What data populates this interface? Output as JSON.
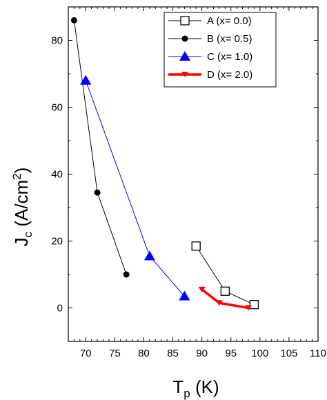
{
  "chart_data": {
    "type": "line",
    "xlabel": {
      "main": "T",
      "sub": "p",
      "unit": " (K)"
    },
    "ylabel": {
      "main": "J",
      "sub": "c",
      "unit": " (A/cm",
      "sup": "2",
      "close": ")"
    },
    "xlim": [
      67,
      110
    ],
    "ylim": [
      -10,
      90
    ],
    "xticks": [
      70,
      75,
      80,
      85,
      90,
      95,
      100,
      105,
      110
    ],
    "yticks": [
      0,
      20,
      40,
      60,
      80
    ],
    "grid": false,
    "legend_position": "top-right",
    "series": [
      {
        "name": "A (x= 0.0)",
        "color": "#000000",
        "marker": "open-square",
        "x": [
          89,
          94,
          99
        ],
        "y": [
          18.5,
          5,
          1
        ]
      },
      {
        "name": "B (x= 0.5)",
        "color": "#000000",
        "marker": "filled-circle",
        "x": [
          68,
          72,
          77
        ],
        "y": [
          86,
          34.5,
          10
        ]
      },
      {
        "name": "C (x= 1.0)",
        "color": "#0000ff",
        "marker": "filled-triangle-up",
        "x": [
          70,
          81,
          87
        ],
        "y": [
          68,
          15.5,
          3.5
        ]
      },
      {
        "name": "D (x= 2.0)",
        "color": "#ff0000",
        "marker": "filled-triangle-down",
        "x": [
          90,
          93,
          98
        ],
        "y": [
          5.5,
          1.5,
          0
        ]
      }
    ]
  }
}
